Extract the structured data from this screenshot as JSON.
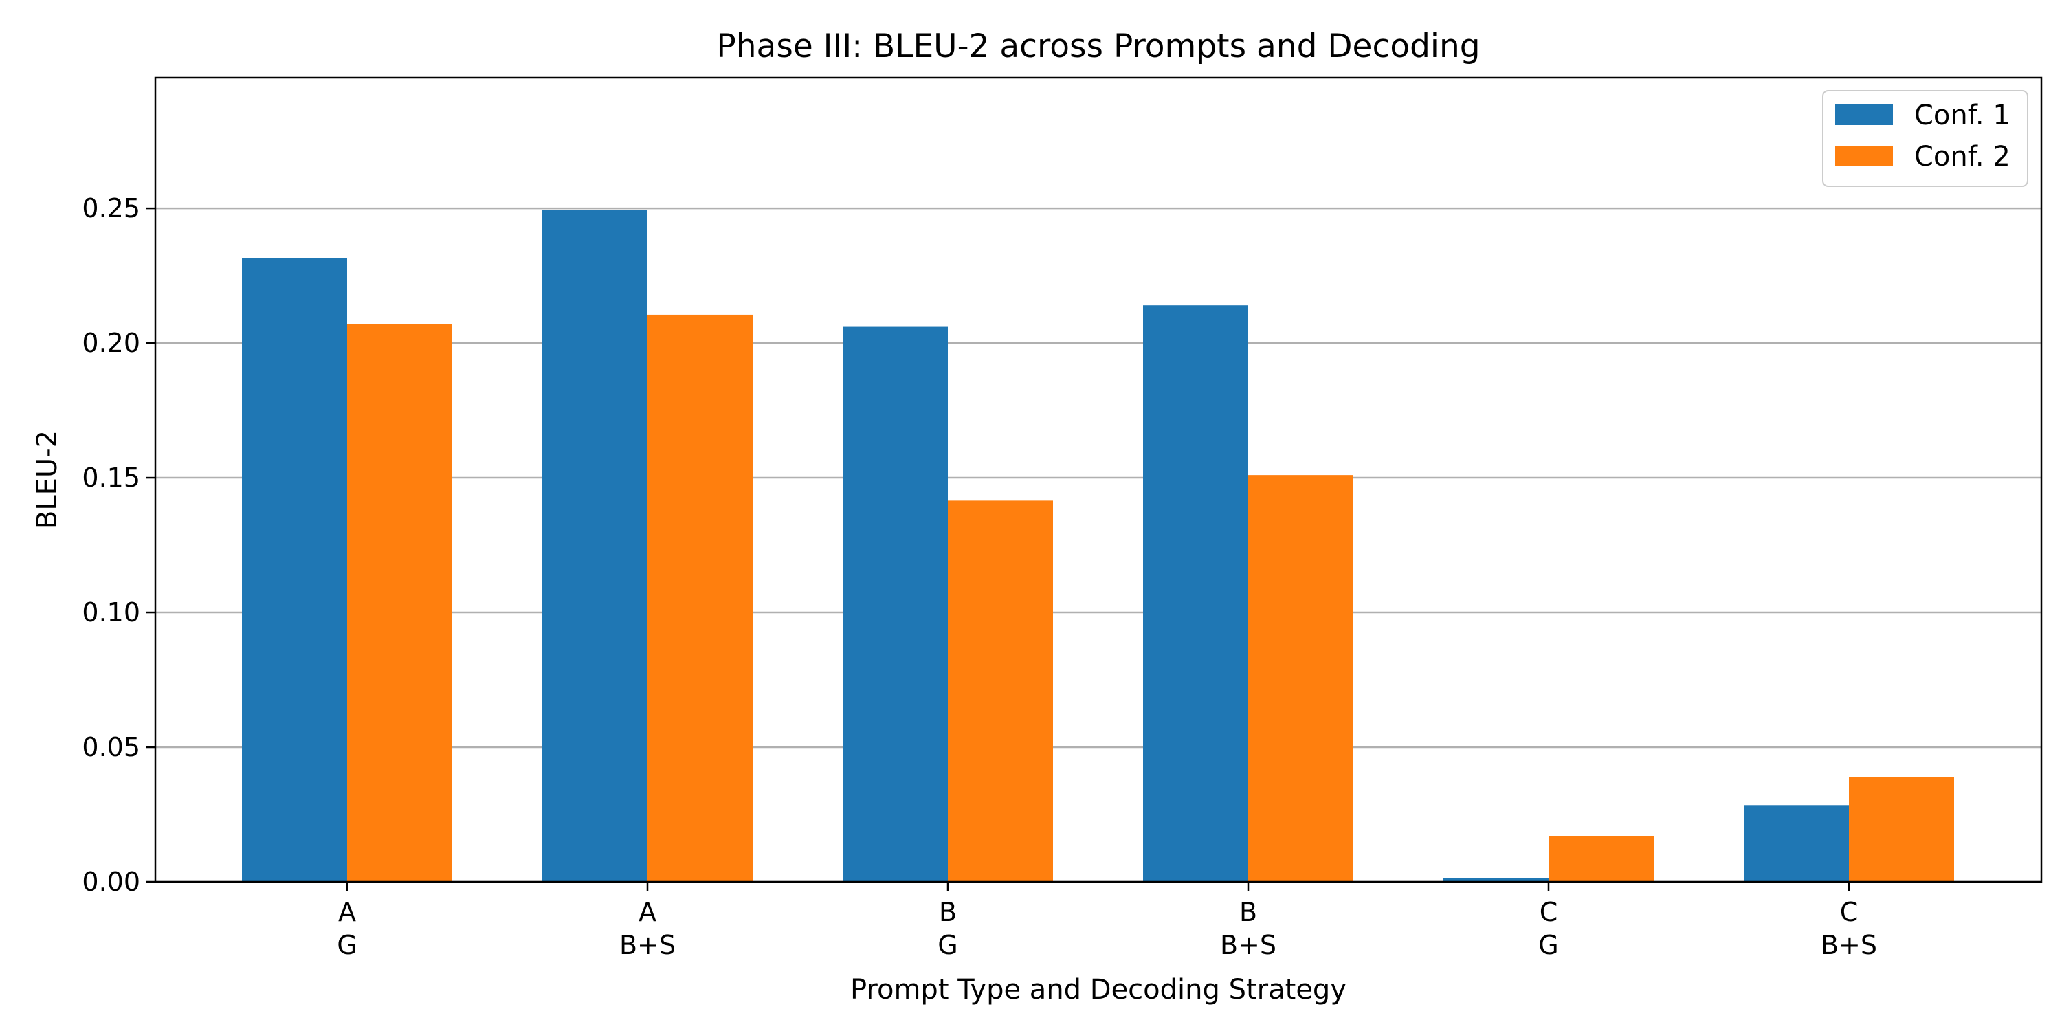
{
  "chart_data": {
    "type": "bar",
    "title": "Phase III: BLEU-2 across Prompts and Decoding",
    "xlabel": "Prompt Type and Decoding Strategy",
    "ylabel": "BLEU-2",
    "categories": [
      [
        "A",
        "G"
      ],
      [
        "A",
        "B+S"
      ],
      [
        "B",
        "G"
      ],
      [
        "B",
        "B+S"
      ],
      [
        "C",
        "G"
      ],
      [
        "C",
        "B+S"
      ]
    ],
    "series": [
      {
        "name": "Conf. 1",
        "color": "#1f77b4",
        "values": [
          0.2315,
          0.2495,
          0.206,
          0.214,
          0.0015,
          0.0285
        ]
      },
      {
        "name": "Conf. 2",
        "color": "#ff7f0e",
        "values": [
          0.207,
          0.2105,
          0.1415,
          0.151,
          0.017,
          0.039
        ]
      }
    ],
    "ylim": [
      0,
      0.2985
    ],
    "yticks": [
      "0.00",
      "0.05",
      "0.10",
      "0.15",
      "0.20",
      "0.25"
    ],
    "grid": "y",
    "legend": "top-right"
  }
}
